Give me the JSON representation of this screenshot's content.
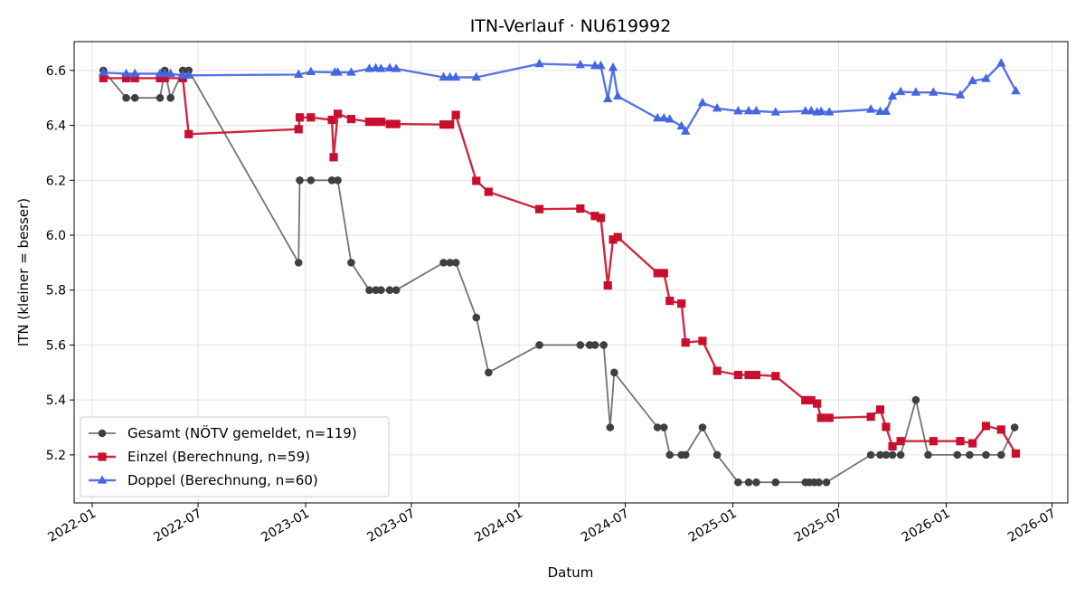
{
  "chart_data": {
    "type": "line",
    "title": "ITN-Verlauf · NU619992",
    "xlabel": "Datum",
    "ylabel": "ITN  (kleiner = besser)",
    "xlim": [
      "2021-12-01",
      "2026-07-28"
    ],
    "ylim": [
      5.025,
      6.705
    ],
    "x_ticks": [
      "2022-01-01",
      "2022-07-01",
      "2023-01-01",
      "2023-07-01",
      "2024-01-01",
      "2024-07-01",
      "2025-01-01",
      "2025-07-01",
      "2026-01-01",
      "2026-07-01"
    ],
    "x_tick_labels": [
      "2022-01",
      "2022-07",
      "2023-01",
      "2023-07",
      "2024-01",
      "2024-07",
      "2025-01",
      "2025-07",
      "2026-01",
      "2026-07"
    ],
    "y_ticks": [
      5.2,
      5.4,
      5.6,
      5.8,
      6.0,
      6.2,
      6.4,
      6.6
    ],
    "y_tick_labels": [
      "5.2",
      "5.4",
      "5.6",
      "5.8",
      "6.0",
      "6.2",
      "6.4",
      "6.6"
    ],
    "grid": true,
    "legend_position": "lower-left",
    "series": [
      {
        "name": "Gesamt (NÖTV gemeldet, n=119)",
        "color": "#3f3f3f",
        "marker": "circle",
        "points": [
          [
            "2022-01-20",
            6.6
          ],
          [
            "2022-02-28",
            6.5
          ],
          [
            "2022-03-15",
            6.5
          ],
          [
            "2022-04-27",
            6.5
          ],
          [
            "2022-05-05",
            6.6
          ],
          [
            "2022-05-15",
            6.5
          ],
          [
            "2022-06-05",
            6.6
          ],
          [
            "2022-06-15",
            6.6
          ],
          [
            "2022-12-20",
            5.9
          ],
          [
            "2022-12-22",
            6.2
          ],
          [
            "2023-01-10",
            6.2
          ],
          [
            "2023-02-15",
            6.2
          ],
          [
            "2023-02-25",
            6.2
          ],
          [
            "2023-03-20",
            5.9
          ],
          [
            "2023-04-20",
            5.8
          ],
          [
            "2023-05-01",
            5.8
          ],
          [
            "2023-05-10",
            5.8
          ],
          [
            "2023-05-25",
            5.8
          ],
          [
            "2023-06-05",
            5.8
          ],
          [
            "2023-08-25",
            5.9
          ],
          [
            "2023-09-05",
            5.9
          ],
          [
            "2023-09-15",
            5.9
          ],
          [
            "2023-10-20",
            5.7
          ],
          [
            "2023-11-10",
            5.5
          ],
          [
            "2024-02-05",
            5.6
          ],
          [
            "2024-04-15",
            5.6
          ],
          [
            "2024-05-01",
            5.6
          ],
          [
            "2024-05-10",
            5.6
          ],
          [
            "2024-05-25",
            5.6
          ],
          [
            "2024-06-05",
            5.3
          ],
          [
            "2024-06-12",
            5.5
          ],
          [
            "2024-08-25",
            5.3
          ],
          [
            "2024-09-05",
            5.3
          ],
          [
            "2024-09-15",
            5.2
          ],
          [
            "2024-10-05",
            5.2
          ],
          [
            "2024-10-12",
            5.2
          ],
          [
            "2024-11-10",
            5.3
          ],
          [
            "2024-12-05",
            5.2
          ],
          [
            "2025-01-10",
            5.1
          ],
          [
            "2025-01-28",
            5.1
          ],
          [
            "2025-02-10",
            5.1
          ],
          [
            "2025-03-15",
            5.1
          ],
          [
            "2025-05-05",
            5.1
          ],
          [
            "2025-05-12",
            5.1
          ],
          [
            "2025-05-20",
            5.1
          ],
          [
            "2025-05-28",
            5.1
          ],
          [
            "2025-06-10",
            5.1
          ],
          [
            "2025-08-25",
            5.2
          ],
          [
            "2025-09-10",
            5.2
          ],
          [
            "2025-09-20",
            5.2
          ],
          [
            "2025-10-01",
            5.2
          ],
          [
            "2025-10-15",
            5.2
          ],
          [
            "2025-11-10",
            5.4
          ],
          [
            "2025-12-01",
            5.2
          ],
          [
            "2026-01-20",
            5.2
          ],
          [
            "2026-02-10",
            5.2
          ],
          [
            "2026-03-10",
            5.2
          ],
          [
            "2026-04-05",
            5.2
          ],
          [
            "2026-04-28",
            5.3
          ]
        ]
      },
      {
        "name": "Einzel (Berechnung, n=59)",
        "color": "#c8102e",
        "marker": "square",
        "points": [
          [
            "2022-01-20",
            6.572
          ],
          [
            "2022-02-28",
            6.572
          ],
          [
            "2022-03-15",
            6.572
          ],
          [
            "2022-04-27",
            6.572
          ],
          [
            "2022-05-05",
            6.572
          ],
          [
            "2022-06-05",
            6.572
          ],
          [
            "2022-06-15",
            6.368
          ],
          [
            "2022-12-20",
            6.386
          ],
          [
            "2022-12-22",
            6.429
          ],
          [
            "2023-01-10",
            6.429
          ],
          [
            "2023-02-15",
            6.42
          ],
          [
            "2023-02-18",
            6.284
          ],
          [
            "2023-02-25",
            6.442
          ],
          [
            "2023-03-20",
            6.423
          ],
          [
            "2023-04-20",
            6.413
          ],
          [
            "2023-05-01",
            6.413
          ],
          [
            "2023-05-10",
            6.413
          ],
          [
            "2023-05-25",
            6.405
          ],
          [
            "2023-06-05",
            6.405
          ],
          [
            "2023-08-25",
            6.403
          ],
          [
            "2023-09-05",
            6.403
          ],
          [
            "2023-09-15",
            6.438
          ],
          [
            "2023-10-20",
            6.198
          ],
          [
            "2023-11-10",
            6.158
          ],
          [
            "2024-02-05",
            6.095
          ],
          [
            "2024-04-15",
            6.097
          ],
          [
            "2024-05-10",
            6.07
          ],
          [
            "2024-05-20",
            6.063
          ],
          [
            "2024-06-01",
            5.817
          ],
          [
            "2024-06-10",
            5.984
          ],
          [
            "2024-06-18",
            5.993
          ],
          [
            "2024-08-25",
            5.862
          ],
          [
            "2024-09-05",
            5.862
          ],
          [
            "2024-09-15",
            5.761
          ],
          [
            "2024-10-05",
            5.751
          ],
          [
            "2024-10-12",
            5.609
          ],
          [
            "2024-11-10",
            5.615
          ],
          [
            "2024-12-05",
            5.506
          ],
          [
            "2025-01-10",
            5.491
          ],
          [
            "2025-01-28",
            5.491
          ],
          [
            "2025-02-10",
            5.491
          ],
          [
            "2025-03-15",
            5.487
          ],
          [
            "2025-05-05",
            5.399
          ],
          [
            "2025-05-15",
            5.399
          ],
          [
            "2025-05-25",
            5.387
          ],
          [
            "2025-06-01",
            5.335
          ],
          [
            "2025-06-15",
            5.335
          ],
          [
            "2025-08-25",
            5.339
          ],
          [
            "2025-09-10",
            5.365
          ],
          [
            "2025-09-20",
            5.302
          ],
          [
            "2025-10-01",
            5.231
          ],
          [
            "2025-10-15",
            5.25
          ],
          [
            "2025-12-10",
            5.25
          ],
          [
            "2026-01-25",
            5.25
          ],
          [
            "2026-02-15",
            5.242
          ],
          [
            "2026-03-10",
            5.305
          ],
          [
            "2026-04-05",
            5.292
          ],
          [
            "2026-04-30",
            5.205
          ]
        ]
      },
      {
        "name": "Doppel (Berechnung, n=60)",
        "color": "#4466e0",
        "marker": "triangle",
        "points": [
          [
            "2022-01-20",
            6.592
          ],
          [
            "2022-02-28",
            6.588
          ],
          [
            "2022-03-15",
            6.588
          ],
          [
            "2022-04-27",
            6.588
          ],
          [
            "2022-05-05",
            6.588
          ],
          [
            "2022-05-15",
            6.588
          ],
          [
            "2022-06-05",
            6.582
          ],
          [
            "2022-06-15",
            6.582
          ],
          [
            "2022-12-20",
            6.585
          ],
          [
            "2023-01-10",
            6.595
          ],
          [
            "2023-02-20",
            6.593
          ],
          [
            "2023-02-25",
            6.593
          ],
          [
            "2023-03-20",
            6.593
          ],
          [
            "2023-04-20",
            6.606
          ],
          [
            "2023-05-01",
            6.608
          ],
          [
            "2023-05-10",
            6.606
          ],
          [
            "2023-05-25",
            6.608
          ],
          [
            "2023-06-05",
            6.606
          ],
          [
            "2023-08-25",
            6.575
          ],
          [
            "2023-09-05",
            6.575
          ],
          [
            "2023-09-15",
            6.575
          ],
          [
            "2023-10-20",
            6.575
          ],
          [
            "2024-02-05",
            6.624
          ],
          [
            "2024-04-15",
            6.62
          ],
          [
            "2024-05-10",
            6.617
          ],
          [
            "2024-05-20",
            6.617
          ],
          [
            "2024-06-01",
            6.496
          ],
          [
            "2024-06-10",
            6.61
          ],
          [
            "2024-06-18",
            6.506
          ],
          [
            "2024-08-25",
            6.426
          ],
          [
            "2024-09-05",
            6.426
          ],
          [
            "2024-09-15",
            6.422
          ],
          [
            "2024-10-05",
            6.397
          ],
          [
            "2024-10-12",
            6.378
          ],
          [
            "2024-11-10",
            6.482
          ],
          [
            "2024-12-05",
            6.462
          ],
          [
            "2025-01-10",
            6.452
          ],
          [
            "2025-01-28",
            6.452
          ],
          [
            "2025-02-10",
            6.452
          ],
          [
            "2025-03-15",
            6.448
          ],
          [
            "2025-05-05",
            6.452
          ],
          [
            "2025-05-15",
            6.452
          ],
          [
            "2025-05-25",
            6.448
          ],
          [
            "2025-06-01",
            6.45
          ],
          [
            "2025-06-15",
            6.448
          ],
          [
            "2025-08-25",
            6.458
          ],
          [
            "2025-09-10",
            6.45
          ],
          [
            "2025-09-20",
            6.45
          ],
          [
            "2025-10-01",
            6.506
          ],
          [
            "2025-10-15",
            6.522
          ],
          [
            "2025-11-10",
            6.52
          ],
          [
            "2025-12-10",
            6.52
          ],
          [
            "2026-01-25",
            6.51
          ],
          [
            "2026-02-15",
            6.562
          ],
          [
            "2026-03-10",
            6.57
          ],
          [
            "2026-04-05",
            6.626
          ],
          [
            "2026-04-30",
            6.525
          ]
        ]
      }
    ]
  }
}
